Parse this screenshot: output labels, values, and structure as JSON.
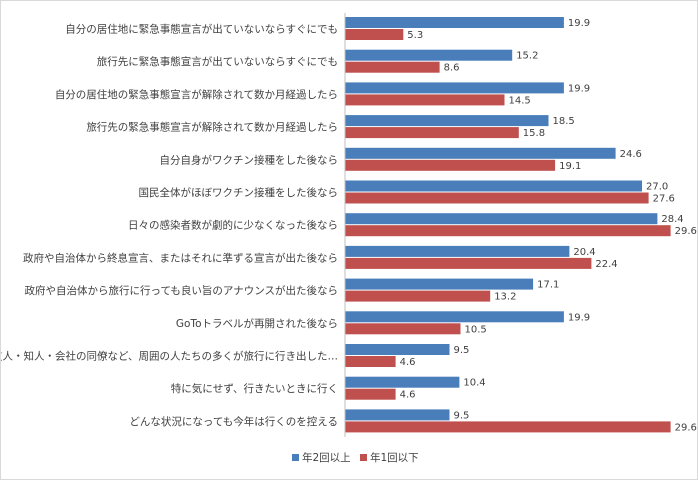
{
  "chart_data": {
    "type": "bar",
    "orientation": "horizontal",
    "categories": [
      "自分の居住地に緊急事態宣言が出ていないならすぐにでも",
      "旅行先に緊急事態宣言が出ていないならすぐにでも",
      "自分の居住地の緊急事態宣言が解除されて数か月経過したら",
      "旅行先の緊急事態宣言が解除されて数か月経過したら",
      "自分自身がワクチン接種をした後なら",
      "国民全体がほぼワクチン接種をした後なら",
      "日々の感染者数が劇的に少なくなった後なら",
      "政府や自治体から終息宣言、またはそれに準ずる宣言が出た後なら",
      "政府や自治体から旅行に行っても良い旨のアナウンスが出た後なら",
      "GoToトラベルが再開された後なら",
      "友人・知人・会社の同僚など、周囲の人たちの多くが旅行に行き出した…",
      "特に気にせず、行きたいときに行く",
      "どんな状況になっても今年は行くのを控える"
    ],
    "series": [
      {
        "name": "年2回以上",
        "color": "#4a7ebb",
        "values": [
          19.9,
          15.2,
          19.9,
          18.5,
          24.6,
          27.0,
          28.4,
          20.4,
          17.1,
          19.9,
          9.5,
          10.4,
          9.5
        ]
      },
      {
        "name": "年1回以下",
        "color": "#c0504d",
        "values": [
          5.3,
          8.6,
          14.5,
          15.8,
          19.1,
          27.6,
          29.6,
          22.4,
          13.2,
          10.5,
          4.6,
          4.6,
          29.6
        ]
      }
    ],
    "xlim": [
      0,
      30
    ],
    "grid": false,
    "legend_position": "bottom",
    "title": "",
    "xlabel": "",
    "ylabel": ""
  }
}
